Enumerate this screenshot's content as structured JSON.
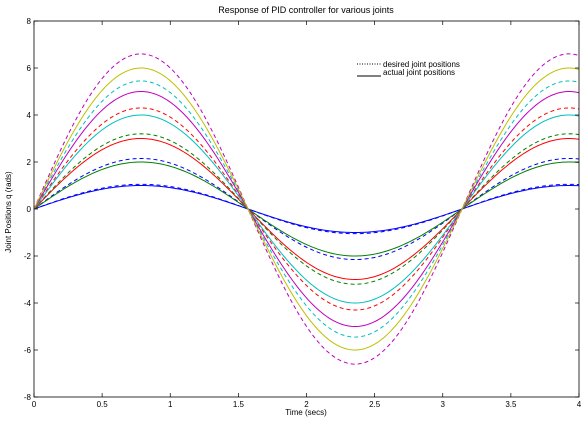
{
  "chart_data": {
    "type": "line",
    "title": "Response of PID controller for various joints",
    "xlabel": "Time (secs)",
    "ylabel": "Joint Positions q (rads)",
    "xlim": [
      0,
      4
    ],
    "ylim": [
      -8,
      8
    ],
    "xticks": [
      0,
      0.5,
      1,
      1.5,
      2,
      2.5,
      3,
      3.5,
      4
    ],
    "xtick_labels": [
      "0",
      "0.5",
      "1",
      "1.5",
      "2",
      "2.5",
      "3",
      "3.5",
      "4"
    ],
    "yticks": [
      -8,
      -6,
      -4,
      -2,
      0,
      2,
      4,
      6,
      8
    ],
    "ytick_labels": [
      "-8",
      "-6",
      "-4",
      "-2",
      "0",
      "2",
      "4",
      "6",
      "8"
    ],
    "grid": false,
    "legend_position": "top-right",
    "legend": {
      "desired": "desired joint positions",
      "actual": "actual joint positions"
    },
    "series": [
      {
        "kind": "desired",
        "color": "#0000ff",
        "amplitude": 1.05,
        "shape": "sin(2t)"
      },
      {
        "kind": "desired",
        "color": "#0000ff",
        "amplitude": 2.15,
        "shape": "sin(2t)"
      },
      {
        "kind": "desired",
        "color": "#008000",
        "amplitude": 3.2,
        "shape": "sin(2t)"
      },
      {
        "kind": "desired",
        "color": "#ff0000",
        "amplitude": 4.3,
        "shape": "sin(2t)"
      },
      {
        "kind": "desired",
        "color": "#00bfbf",
        "amplitude": 5.45,
        "shape": "sin(2t)"
      },
      {
        "kind": "desired",
        "color": "#bf00bf",
        "amplitude": 6.6,
        "shape": "sin(2t)"
      },
      {
        "kind": "actual",
        "color": "#0000ff",
        "amplitude": 1.0,
        "shape": "sin(2t)"
      },
      {
        "kind": "actual",
        "color": "#008000",
        "amplitude": 2.0,
        "shape": "sin(2t)"
      },
      {
        "kind": "actual",
        "color": "#ff0000",
        "amplitude": 3.0,
        "shape": "sin(2t)"
      },
      {
        "kind": "actual",
        "color": "#00bfbf",
        "amplitude": 4.0,
        "shape": "sin(2t)"
      },
      {
        "kind": "actual",
        "color": "#bf00bf",
        "amplitude": 5.0,
        "shape": "sin(2t)"
      },
      {
        "kind": "actual",
        "color": "#bfbf00",
        "amplitude": 6.0,
        "shape": "sin(2t)"
      }
    ]
  }
}
